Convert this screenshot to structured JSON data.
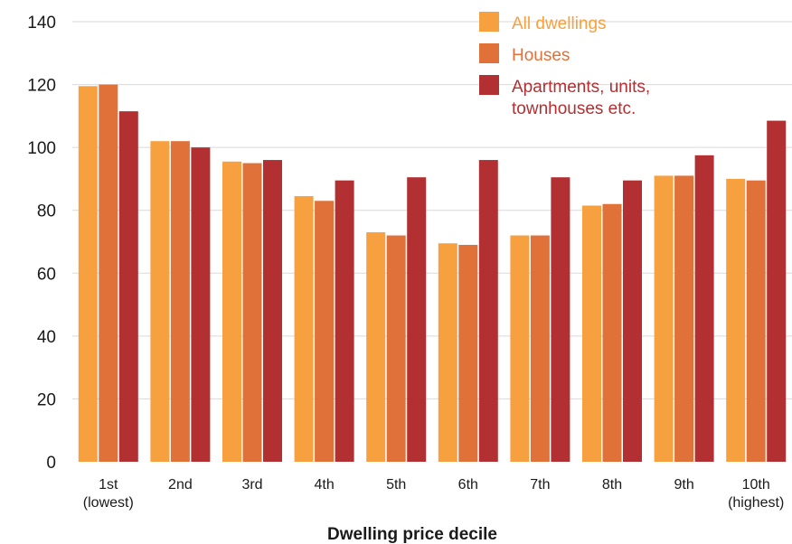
{
  "chart_data": {
    "type": "bar",
    "title": "",
    "xlabel": "Dwelling price decile",
    "ylabel": "",
    "ylim": [
      0,
      140
    ],
    "yticks": [
      0,
      20,
      40,
      60,
      80,
      100,
      120,
      140
    ],
    "grid": true,
    "legend_position": "top-right",
    "categories": [
      [
        "1st",
        "(lowest)"
      ],
      [
        "2nd"
      ],
      [
        "3rd"
      ],
      [
        "4th"
      ],
      [
        "5th"
      ],
      [
        "6th"
      ],
      [
        "7th"
      ],
      [
        "8th"
      ],
      [
        "9th"
      ],
      [
        "10th",
        "(highest)"
      ]
    ],
    "series": [
      {
        "name": "All dwellings",
        "color": "#f7a03f",
        "values": [
          119.5,
          102,
          95.5,
          84.5,
          73,
          69.5,
          72,
          81.5,
          91,
          90
        ]
      },
      {
        "name": "Houses",
        "color": "#e07139",
        "values": [
          120,
          102,
          95,
          83,
          72,
          69,
          72,
          82,
          91,
          89.5
        ]
      },
      {
        "name": "Apartments, units,\ntownhouses etc.",
        "color": "#b33032",
        "values": [
          111.5,
          100,
          96,
          89.5,
          90.5,
          96,
          90.5,
          89.5,
          97.5,
          108.5
        ]
      }
    ]
  }
}
